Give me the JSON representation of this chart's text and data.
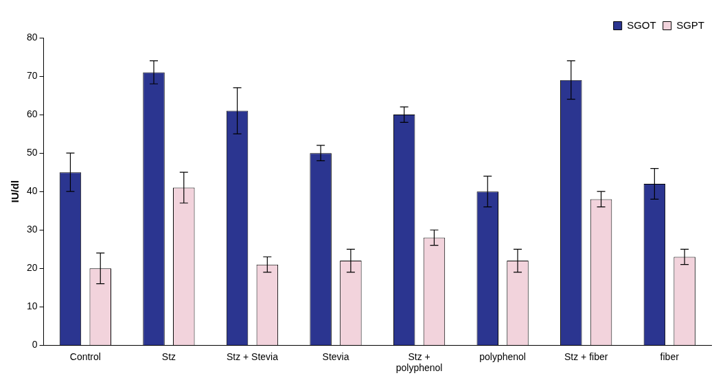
{
  "chart_data": {
    "type": "bar",
    "ylabel": "IU/dl",
    "categories": [
      "Control",
      "Stz",
      "Stz + Stevia",
      "Stevia",
      "Stz + polyphenol",
      "polyphenol",
      "Stz + fiber",
      "fiber"
    ],
    "series": [
      {
        "name": "SGOT",
        "color": "#2b3590",
        "values": [
          45,
          71,
          61,
          50,
          60,
          40,
          69,
          42
        ],
        "errors": [
          5,
          3,
          6,
          2,
          2,
          4,
          5,
          4
        ]
      },
      {
        "name": "SGPT",
        "color": "#f2d3dc",
        "values": [
          20,
          41,
          21,
          22,
          28,
          22,
          38,
          23
        ],
        "errors": [
          4,
          4,
          2,
          3,
          2,
          3,
          2,
          2
        ]
      }
    ],
    "ylim": [
      0,
      80
    ],
    "yticks": [
      0,
      10,
      20,
      30,
      40,
      50,
      60,
      70,
      80
    ],
    "grid": false,
    "legend": "top right"
  }
}
